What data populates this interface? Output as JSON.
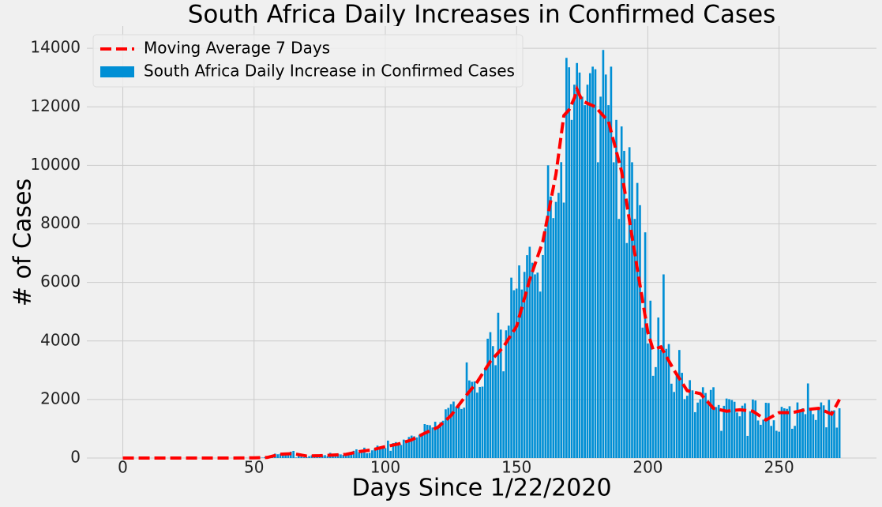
{
  "chart_data": {
    "type": "bar",
    "title": "South Africa Daily Increases in Confirmed Cases",
    "xlabel": "Days Since 1/22/2020",
    "ylabel": "# of Cases",
    "xlim": [
      -13.7,
      287.1
    ],
    "ylim": [
      0,
      14760
    ],
    "xticks": [
      0,
      50,
      100,
      150,
      200,
      250
    ],
    "yticks": [
      0,
      2000,
      4000,
      6000,
      8000,
      10000,
      12000,
      14000
    ],
    "grid": true,
    "legend": "upper left",
    "series": [
      {
        "name": "Moving Average 7 Days",
        "type": "line",
        "color": "#ff0000",
        "x": [
          0,
          5,
          10,
          15,
          20,
          25,
          30,
          35,
          40,
          45,
          50,
          55,
          60,
          65,
          70,
          75,
          80,
          85,
          90,
          95,
          100,
          105,
          110,
          115,
          120,
          125,
          130,
          135,
          140,
          145,
          150,
          155,
          160,
          165,
          168,
          170,
          172,
          173,
          175,
          180,
          185,
          190,
          195,
          200,
          202,
          205,
          210,
          215,
          220,
          225,
          230,
          235,
          240,
          245,
          250,
          255,
          260,
          265,
          270,
          273
        ],
        "values": [
          0,
          0,
          0,
          0,
          0,
          0,
          0,
          0,
          0,
          2,
          8,
          20,
          130,
          150,
          70,
          80,
          100,
          125,
          220,
          280,
          390,
          480,
          620,
          850,
          1050,
          1450,
          2050,
          2600,
          3300,
          3800,
          4500,
          6100,
          7400,
          9700,
          11700,
          11900,
          12300,
          12600,
          12200,
          12000,
          11500,
          9800,
          7000,
          4300,
          3700,
          3800,
          3000,
          2300,
          2200,
          1700,
          1600,
          1650,
          1600,
          1300,
          1550,
          1550,
          1650,
          1700,
          1500,
          2000
        ]
      },
      {
        "name": "South Africa Daily Increase in Confirmed Cases",
        "type": "bar",
        "color": "#008fd5",
        "x": [
          0,
          1,
          2,
          3,
          4,
          5,
          6,
          7,
          8,
          9,
          10,
          11,
          12,
          13,
          14,
          15,
          16,
          17,
          18,
          19,
          20,
          21,
          22,
          23,
          24,
          25,
          26,
          27,
          28,
          29,
          30,
          31,
          32,
          33,
          34,
          35,
          36,
          37,
          38,
          39,
          40,
          41,
          42,
          43,
          44,
          45,
          46,
          47,
          48,
          49,
          50,
          51,
          52,
          53,
          54,
          55,
          56,
          57,
          58,
          59,
          60,
          61,
          62,
          63,
          64,
          65,
          66,
          67,
          68,
          69,
          70,
          71,
          72,
          73,
          74,
          75,
          76,
          77,
          78,
          79,
          80,
          81,
          82,
          83,
          84,
          85,
          86,
          87,
          88,
          89,
          90,
          91,
          92,
          93,
          94,
          95,
          96,
          97,
          98,
          99,
          100,
          101,
          102,
          103,
          104,
          105,
          106,
          107,
          108,
          109,
          110,
          111,
          112,
          113,
          114,
          115,
          116,
          117,
          118,
          119,
          120,
          121,
          122,
          123,
          124,
          125,
          126,
          127,
          128,
          129,
          130,
          131,
          132,
          133,
          134,
          135,
          136,
          137,
          138,
          139,
          140,
          141,
          142,
          143,
          144,
          145,
          146,
          147,
          148,
          149,
          150,
          151,
          152,
          153,
          154,
          155,
          156,
          157,
          158,
          159,
          160,
          161,
          162,
          163,
          164,
          165,
          166,
          167,
          168,
          169,
          170,
          171,
          172,
          173,
          174,
          175,
          176,
          177,
          178,
          179,
          180,
          181,
          182,
          183,
          184,
          185,
          186,
          187,
          188,
          189,
          190,
          191,
          192,
          193,
          194,
          195,
          196,
          197,
          198,
          199,
          200,
          201,
          202,
          203,
          204,
          205,
          206,
          207,
          208,
          209,
          210,
          211,
          212,
          213,
          214,
          215,
          216,
          217,
          218,
          219,
          220,
          221,
          222,
          223,
          224,
          225,
          226,
          227,
          228,
          229,
          230,
          231,
          232,
          233,
          234,
          235,
          236,
          237,
          238,
          239,
          240,
          241,
          242,
          243,
          244,
          245,
          246,
          247,
          248,
          249,
          250,
          251,
          252,
          253,
          254,
          255,
          256,
          257,
          258,
          259,
          260,
          261,
          262,
          263,
          264,
          265,
          266,
          267,
          268,
          269,
          270,
          271,
          272,
          273
        ],
        "values": [
          0,
          0,
          0,
          0,
          0,
          0,
          0,
          0,
          0,
          0,
          0,
          0,
          0,
          0,
          0,
          0,
          0,
          0,
          0,
          0,
          0,
          0,
          0,
          0,
          0,
          0,
          0,
          0,
          0,
          0,
          0,
          0,
          0,
          0,
          0,
          0,
          0,
          0,
          0,
          0,
          0,
          0,
          0,
          1,
          0,
          1,
          4,
          3,
          0,
          6,
          11,
          13,
          24,
          13,
          24,
          21,
          30,
          34,
          150,
          128,
          146,
          102,
          152,
          155,
          218,
          243,
          17,
          83,
          46,
          27,
          27,
          64,
          93,
          80,
          96,
          69,
          89,
          99,
          67,
          178,
          95,
          65,
          143,
          124,
          106,
          139,
          138,
          152,
          248,
          297,
          203,
          267,
          354,
          165,
          180,
          263,
          318,
          424,
          365,
          375,
          337,
          595,
          247,
          511,
          545,
          488,
          445,
          630,
          613,
          719,
          767,
          742,
          704,
          788,
          831,
          1160,
          1134,
          1121,
          1044,
          1240,
          1016,
          1220,
          1275,
          1665,
          1713,
          1839,
          1930,
          1756,
          1800,
          1676,
          1722,
          3267,
          2652,
          2603,
          2618,
          2236,
          2430,
          2441,
          3069,
          4078,
          4302,
          3825,
          3172,
          4966,
          4388,
          2963,
          4364,
          4523,
          6163,
          5734,
          5789,
          6582,
          5758,
          6361,
          6932,
          7219,
          6674,
          6275,
          6335,
          5688,
          6936,
          7841,
          10002,
          8935,
          8198,
          8752,
          9062,
          10111,
          8729,
          13674,
          13351,
          11554,
          12757,
          13497,
          13172,
          12348,
          12058,
          12757,
          13150,
          13373,
          13285,
          10107,
          12348,
          13944,
          13104,
          12058,
          13373,
          10107,
          11554,
          8170,
          11330,
          10496,
          7347,
          10621,
          10107,
          8170,
          9400,
          8640,
          4456,
          7712,
          3916,
          5377,
          2810,
          3107,
          4801,
          3702,
          6275,
          3731,
          3895,
          2541,
          2258,
          2920,
          3692,
          2912,
          2013,
          2128,
          2661,
          2313,
          1567,
          1895,
          2009,
          2420,
          2222,
          1974,
          2327,
          2420,
          1742,
          1812,
          929,
          1784,
          2033,
          2012,
          1981,
          1923,
          1556,
          1426,
          1789,
          1870,
          757,
          1600,
          2000,
          1967,
          1283,
          1136,
          1310,
          1889,
          1880,
          1098,
          1290,
          932,
          900,
          1750,
          1700,
          1680,
          1770,
          1000,
          1100,
          1900,
          1630,
          1700,
          1500,
          2550,
          1670,
          1500,
          1300,
          1700,
          1900,
          1800,
          1050,
          1990,
          1620,
          1630,
          1040,
          1700
        ]
      }
    ]
  }
}
